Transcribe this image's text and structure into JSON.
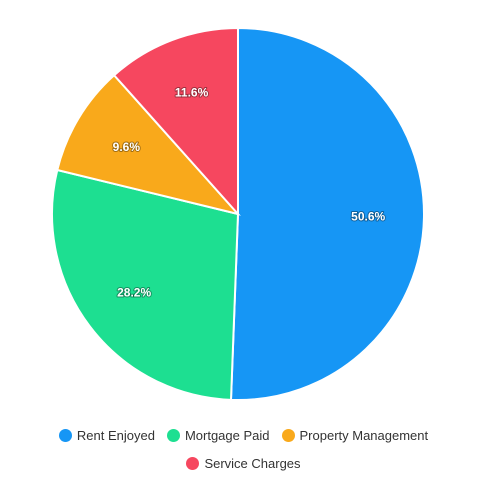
{
  "chart_data": {
    "type": "pie",
    "title": "",
    "categories": [
      "Rent Enjoyed",
      "Mortgage Paid",
      "Property Management",
      "Service Charges"
    ],
    "values": [
      50.6,
      28.2,
      9.6,
      11.6
    ],
    "value_labels": [
      "50.6%",
      "28.2%",
      "9.6%",
      "11.6%"
    ],
    "colors": [
      "#1696f5",
      "#1ddf91",
      "#f9a91b",
      "#f6475f"
    ],
    "start_angle_deg": 0,
    "direction": "clockwise",
    "legend_placement": "bottom"
  },
  "legend": {
    "items": [
      {
        "label": "Rent Enjoyed",
        "color": "#1696f5"
      },
      {
        "label": "Mortgage Paid",
        "color": "#1ddf91"
      },
      {
        "label": "Property Management",
        "color": "#f9a91b"
      },
      {
        "label": "Service Charges",
        "color": "#f6475f"
      }
    ]
  }
}
